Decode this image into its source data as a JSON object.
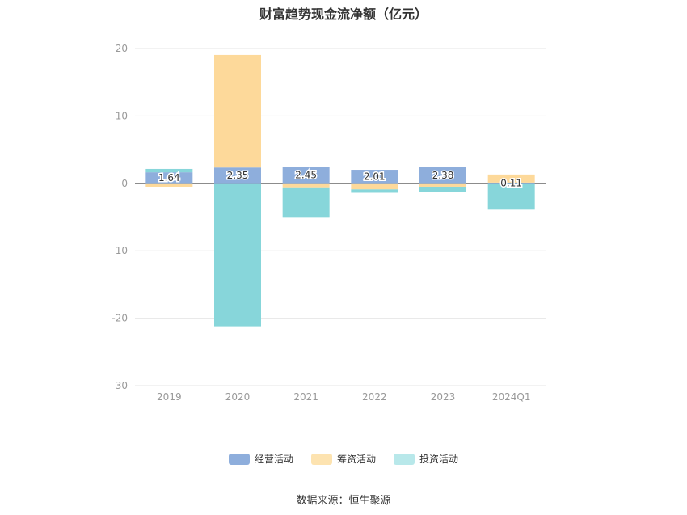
{
  "chart_data": {
    "type": "bar",
    "stacked": true,
    "title": "财富趋势现金流净额（亿元）",
    "categories": [
      "2019",
      "2020",
      "2021",
      "2022",
      "2023",
      "2024Q1"
    ],
    "ylim": [
      -30,
      20
    ],
    "yticks": [
      20,
      10,
      0,
      -10,
      -20,
      -30
    ],
    "series": [
      {
        "name": "经营活动",
        "color": "#8eaedc",
        "values": [
          1.64,
          2.35,
          2.45,
          2.01,
          2.38,
          0.11
        ],
        "labels": [
          "1.64",
          "2.35",
          "2.45",
          "2.01",
          "2.38",
          "0.11"
        ]
      },
      {
        "name": "筹资活动",
        "color": "#fdd99a",
        "values": [
          -0.5,
          16.7,
          -0.6,
          -0.9,
          -0.5,
          1.2
        ]
      },
      {
        "name": "投资活动",
        "color": "#87d6da",
        "values": [
          0.5,
          -21.2,
          -4.5,
          -0.5,
          -0.8,
          -3.9
        ]
      }
    ],
    "legend_position": "bottom",
    "grid": true
  },
  "legend": {
    "items": [
      {
        "label": "经营活动",
        "color": "#8eaedc"
      },
      {
        "label": "筹资活动",
        "color": "#fde3b0"
      },
      {
        "label": "投资活动",
        "color": "#b8e8ea"
      }
    ]
  },
  "source": "数据来源：恒生聚源"
}
